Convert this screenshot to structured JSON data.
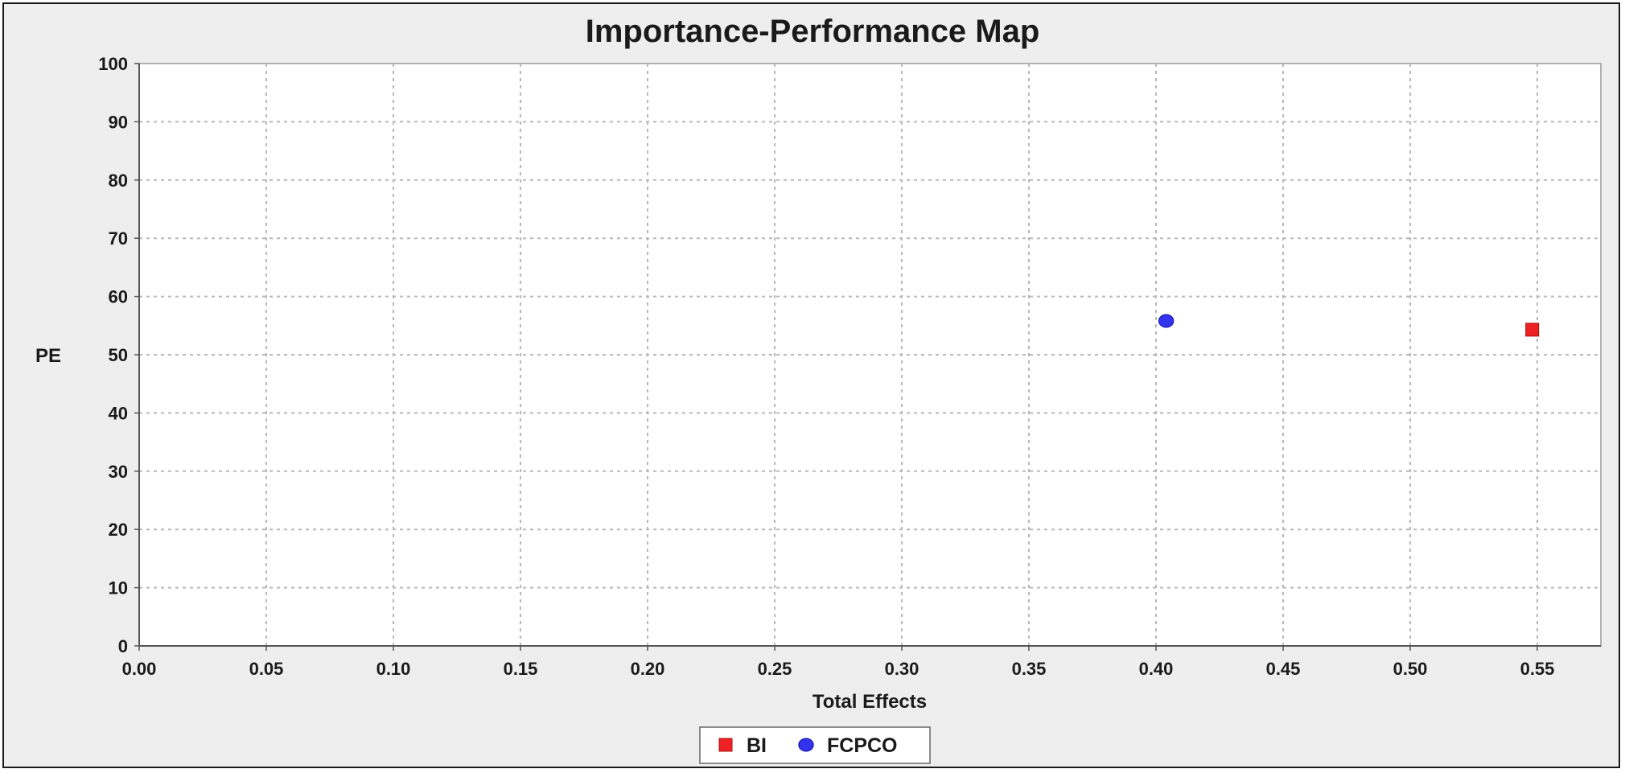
{
  "chart_data": {
    "type": "scatter",
    "title": "Importance-Performance Map",
    "xlabel": "Total Effects",
    "ylabel": "PE",
    "xlim": [
      0,
      0.575
    ],
    "ylim": [
      0,
      100
    ],
    "xticks": [
      "0.00",
      "0.05",
      "0.10",
      "0.15",
      "0.20",
      "0.25",
      "0.30",
      "0.35",
      "0.40",
      "0.45",
      "0.50",
      "0.55"
    ],
    "yticks": [
      "0",
      "10",
      "20",
      "30",
      "40",
      "50",
      "60",
      "70",
      "80",
      "90",
      "100"
    ],
    "grid": true,
    "legend_position": "bottom-center",
    "series": [
      {
        "name": "BI",
        "marker": "square",
        "color": "#ee2222",
        "points": [
          {
            "x": 0.548,
            "y": 54.3
          }
        ]
      },
      {
        "name": "FCPCO",
        "marker": "circle",
        "color": "#3333ee",
        "points": [
          {
            "x": 0.404,
            "y": 55.8
          }
        ]
      }
    ]
  },
  "colors": {
    "background": "#eeeeee",
    "plot_background": "#ffffff",
    "grid": "#b8b8b8"
  }
}
